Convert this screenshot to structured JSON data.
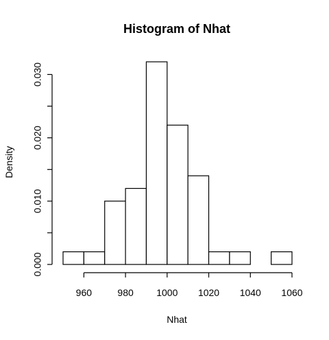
{
  "chart_data": {
    "type": "bar",
    "title": "Histogram of Nhat",
    "xlabel": "Nhat",
    "ylabel": "Density",
    "bins": [
      {
        "start": 950,
        "end": 960,
        "density": 0.002
      },
      {
        "start": 960,
        "end": 970,
        "density": 0.002
      },
      {
        "start": 970,
        "end": 980,
        "density": 0.01
      },
      {
        "start": 980,
        "end": 990,
        "density": 0.012
      },
      {
        "start": 990,
        "end": 1000,
        "density": 0.032
      },
      {
        "start": 1000,
        "end": 1010,
        "density": 0.022
      },
      {
        "start": 1010,
        "end": 1020,
        "density": 0.014
      },
      {
        "start": 1020,
        "end": 1030,
        "density": 0.002
      },
      {
        "start": 1030,
        "end": 1040,
        "density": 0.002
      },
      {
        "start": 1040,
        "end": 1050,
        "density": 0.0
      },
      {
        "start": 1050,
        "end": 1060,
        "density": 0.002
      }
    ],
    "xlim": [
      950,
      1060
    ],
    "ylim": [
      0,
      0.032
    ],
    "xticks": [
      960,
      980,
      1000,
      1020,
      1040,
      1060
    ],
    "xtick_labels": [
      "960",
      "980",
      "1000",
      "1020",
      "1040",
      "1060"
    ],
    "yticks": [
      0.0,
      0.005,
      0.01,
      0.015,
      0.02,
      0.025,
      0.03
    ],
    "ytick_labels": [
      "0.000",
      "",
      "0.010",
      "",
      "0.020",
      "",
      "0.030"
    ],
    "grid": false,
    "legend": "none"
  }
}
